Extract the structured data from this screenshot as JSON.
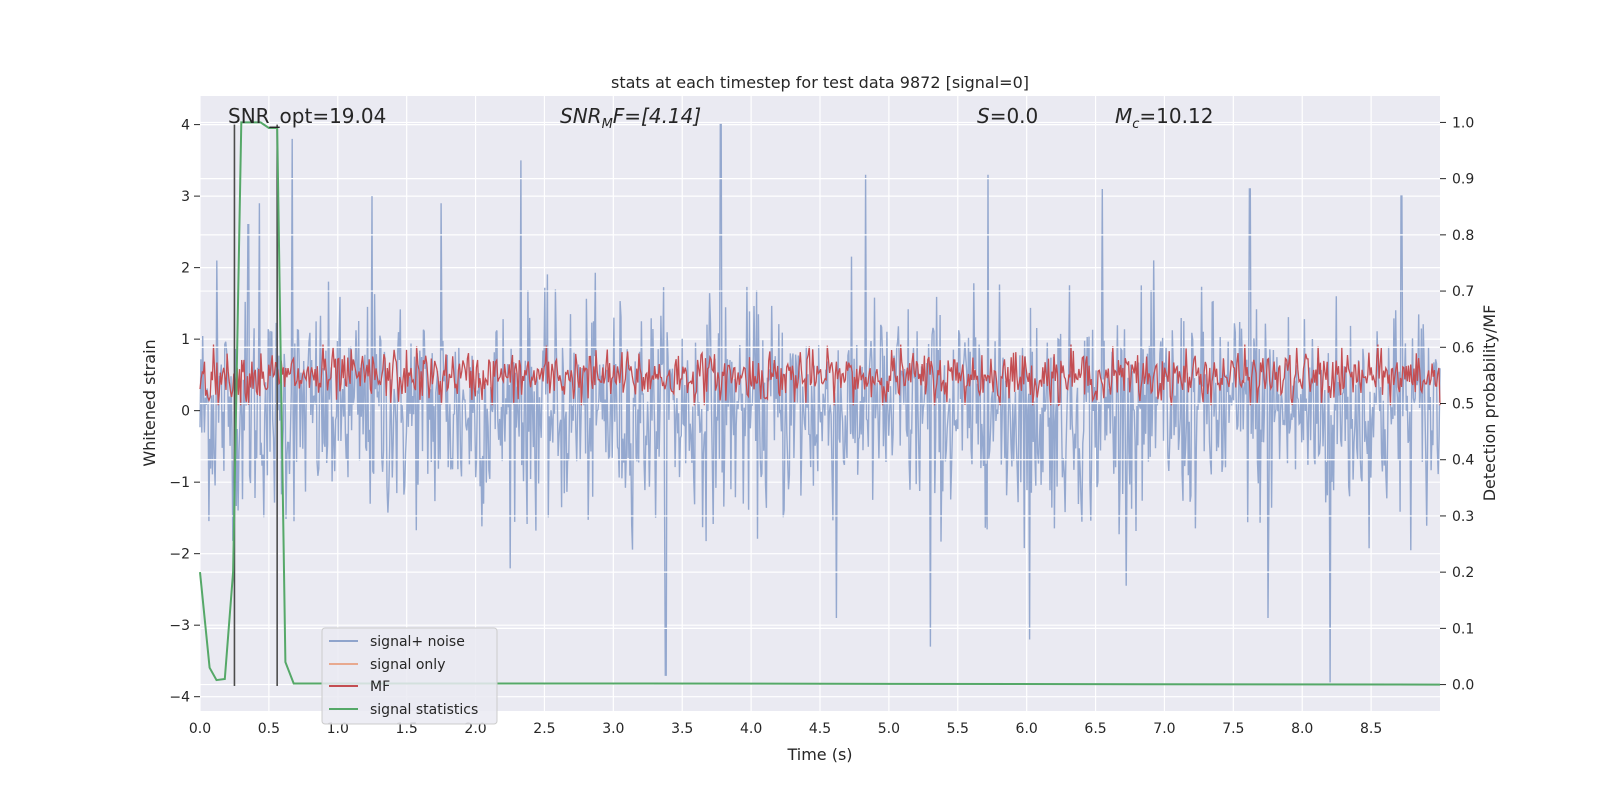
{
  "chart_data": {
    "type": "line",
    "title": "stats at each timestep for test data 9872 [signal=0]",
    "xlabel": "Time (s)",
    "ylabel": "Whitened strain",
    "ylabel_right": "Detection probability/MF",
    "xlim": [
      0.0,
      9.0
    ],
    "ylim": [
      -4.2,
      4.4
    ],
    "ylim_right": [
      -0.047,
      1.047
    ],
    "xticks": [
      "0.0",
      "0.5",
      "1.0",
      "1.5",
      "2.0",
      "2.5",
      "3.0",
      "3.5",
      "4.0",
      "4.5",
      "5.0",
      "5.5",
      "6.0",
      "6.5",
      "7.0",
      "7.5",
      "8.0",
      "8.5"
    ],
    "yticks": [
      "4",
      "3",
      "2",
      "1",
      "0",
      "−1",
      "−2",
      "−3",
      "−4"
    ],
    "yticks_right": [
      "1.0",
      "0.9",
      "0.8",
      "0.7",
      "0.6",
      "0.5",
      "0.4",
      "0.3",
      "0.2",
      "0.1",
      "0.0"
    ],
    "grid": true,
    "annotations": {
      "snr_opt": "SNR_opt=19.04",
      "snr_mf_base": "SNR",
      "snr_mf_sub": "M",
      "snr_mf_rest": "F=[4.14]",
      "s_label": "S",
      "s_rest": "=0.0",
      "mc_base": "M",
      "mc_sub": "c",
      "mc_rest": "=10.12"
    },
    "vlines_s": [
      0.25,
      0.56
    ],
    "series": [
      {
        "name": "signal+ noise",
        "color": "#8fa4cc",
        "description": "whitened noise, mostly in [-1.5, 1.7] with spikes up to 4.0 and down to -4.0",
        "spike_peaks": [
          {
            "x": 0.12,
            "y": 2.1
          },
          {
            "x": 0.35,
            "y": 2.6
          },
          {
            "x": 0.43,
            "y": 2.9
          },
          {
            "x": 0.67,
            "y": 3.8
          },
          {
            "x": 1.25,
            "y": 2.9
          },
          {
            "x": 1.25,
            "y": 3.0
          },
          {
            "x": 1.75,
            "y": 2.9
          },
          {
            "x": 2.33,
            "y": 3.5
          },
          {
            "x": 3.78,
            "y": 4.0
          },
          {
            "x": 4.83,
            "y": 3.3
          },
          {
            "x": 5.72,
            "y": 3.3
          },
          {
            "x": 6.55,
            "y": 3.1
          },
          {
            "x": 7.62,
            "y": 3.1
          },
          {
            "x": 8.72,
            "y": 3.0
          },
          {
            "x": 3.38,
            "y": -3.7
          },
          {
            "x": 5.3,
            "y": -3.3
          },
          {
            "x": 6.02,
            "y": -3.2
          },
          {
            "x": 8.2,
            "y": -3.8
          },
          {
            "x": 7.75,
            "y": -2.9
          },
          {
            "x": 4.62,
            "y": -2.9
          }
        ]
      },
      {
        "name": "signal only",
        "color": "#e8a98f",
        "description": "not visible (signal=0)"
      },
      {
        "name": "MF",
        "color": "#c44e52",
        "description": "matched-filter output on right axis, oscillating roughly 0.50 to 0.60"
      },
      {
        "name": "signal statistics",
        "color": "#55a868",
        "x": [
          0.0,
          0.07,
          0.12,
          0.18,
          0.24,
          0.3,
          0.36,
          0.44,
          0.5,
          0.56,
          0.62,
          0.68,
          3.0,
          3.2,
          9.0
        ],
        "y": [
          0.2,
          0.03,
          0.008,
          0.01,
          0.2,
          1.0,
          1.0,
          1.0,
          0.99,
          0.99,
          0.04,
          0.002,
          0.002,
          0.002,
          0.0
        ]
      }
    ],
    "legend_placement": "lower-left"
  }
}
